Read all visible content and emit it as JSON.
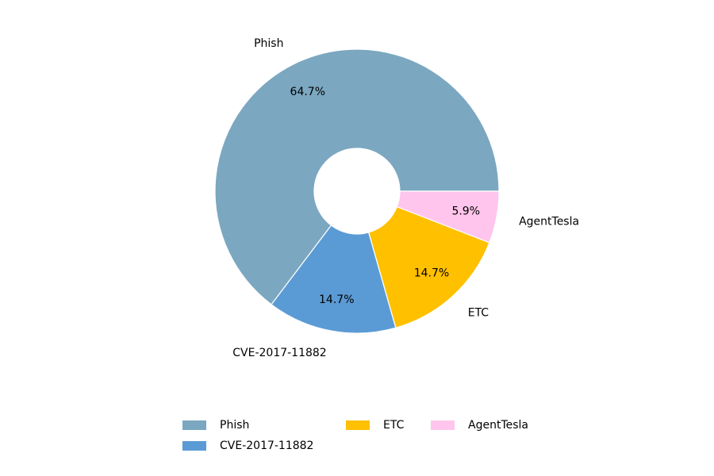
{
  "chart_data": {
    "type": "donut",
    "categories": [
      "Phish",
      "CVE-2017-11882",
      "ETC",
      "AgentTesla"
    ],
    "values": [
      64.7,
      14.7,
      14.7,
      5.9
    ],
    "value_labels": [
      "64.7%",
      "14.7%",
      "14.7%",
      "5.9%"
    ],
    "colors": [
      "#7ba7c0",
      "#5b9bd5",
      "#ffc000",
      "#ffc5ec"
    ],
    "legend": "bottom"
  }
}
